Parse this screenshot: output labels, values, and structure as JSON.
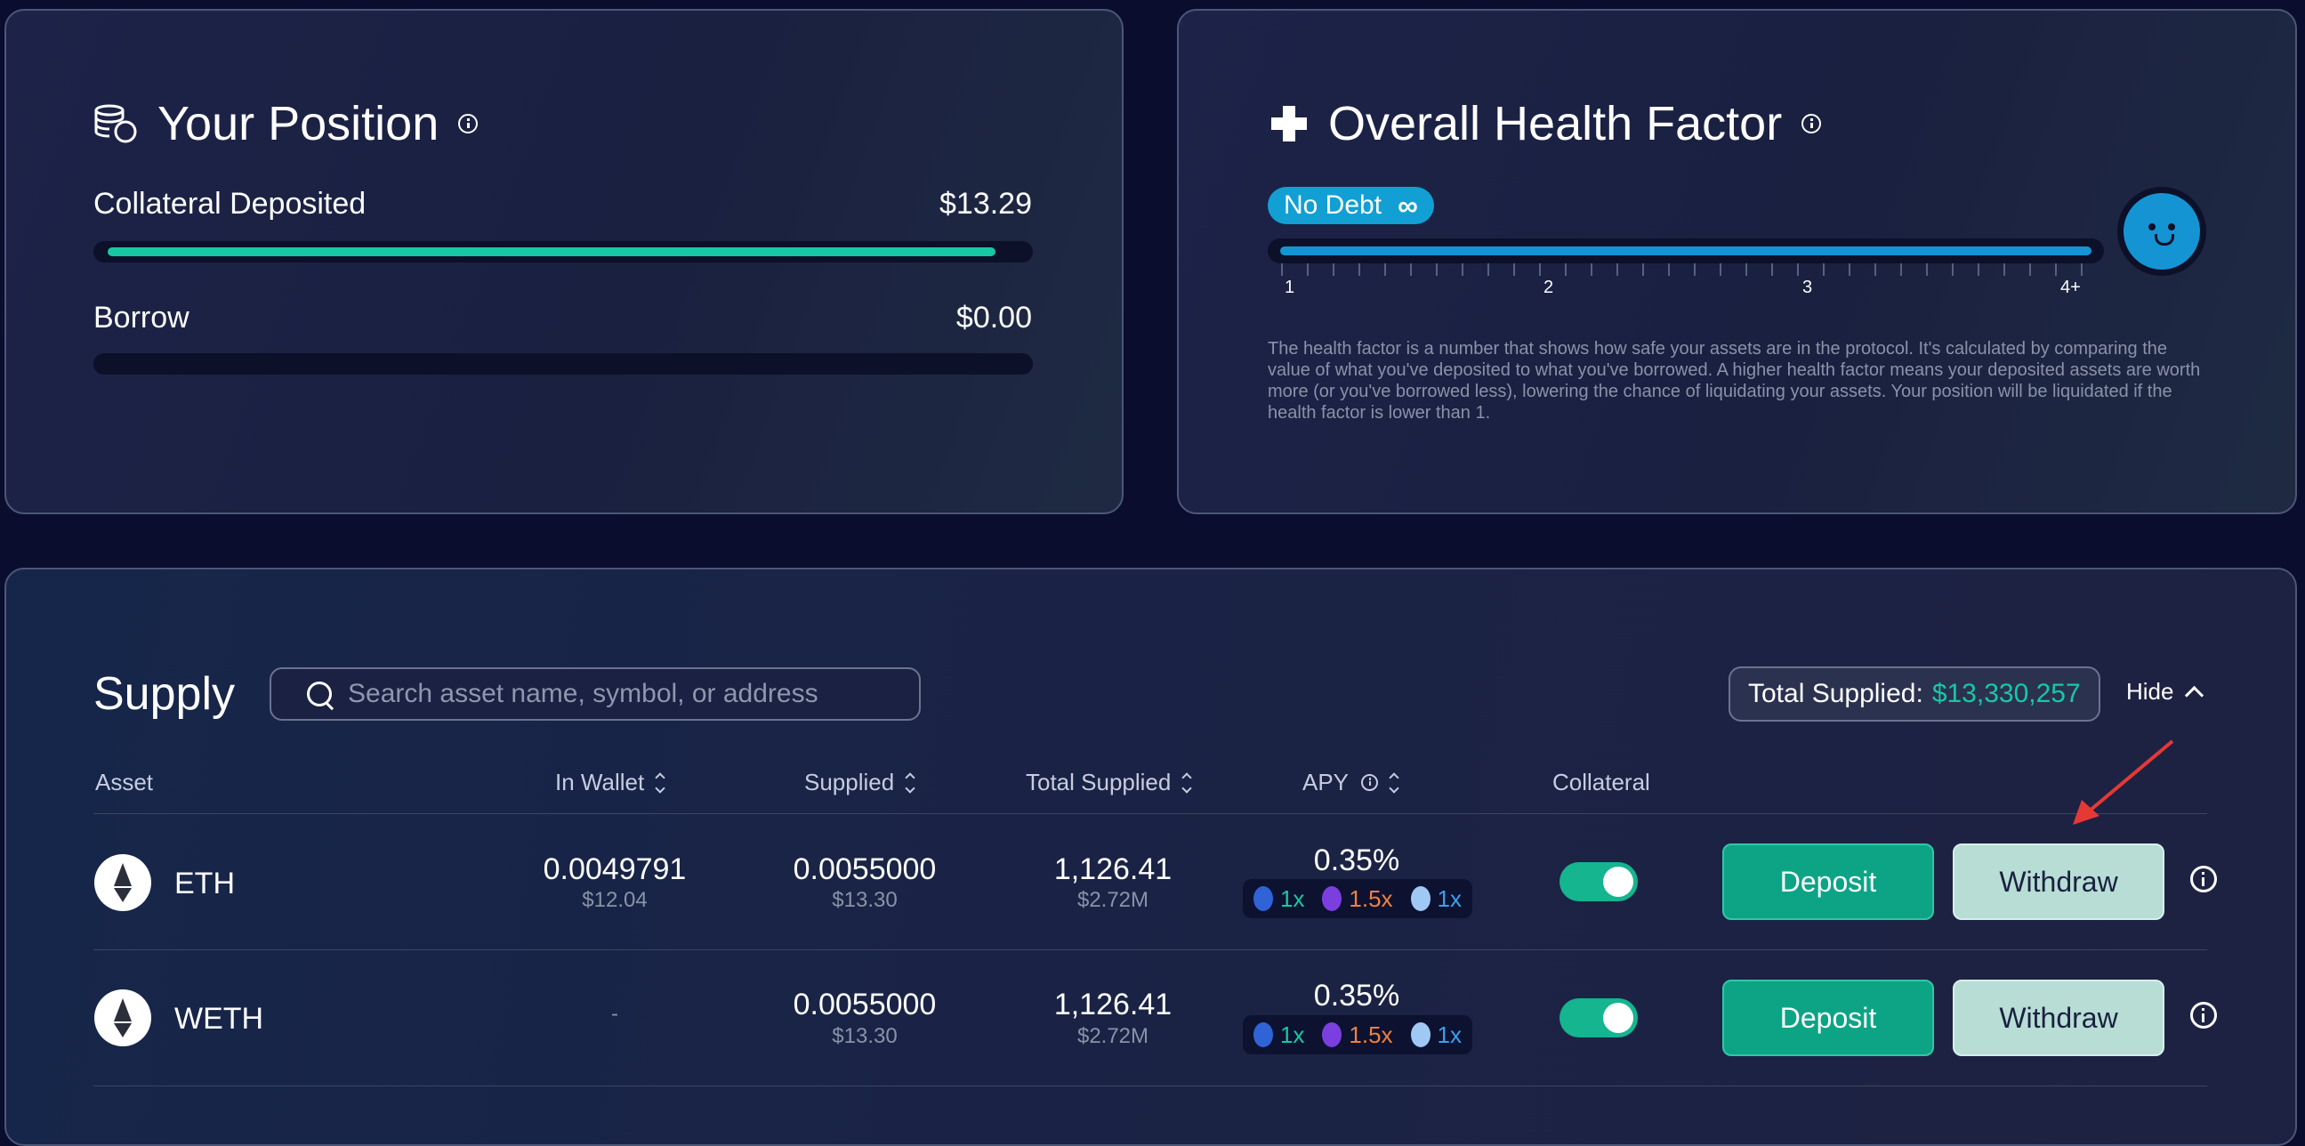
{
  "position": {
    "title": "Your Position",
    "collateral_label": "Collateral Deposited",
    "collateral_value": "$13.29",
    "collateral_fill": 0.975,
    "borrow_label": "Borrow",
    "borrow_value": "$0.00",
    "borrow_fill": 0
  },
  "health": {
    "title": "Overall Health Factor",
    "badge_label": "No Debt",
    "badge_symbol": "∞",
    "scale": [
      "1",
      "2",
      "3",
      "4+"
    ],
    "description": "The health factor is a number that shows how safe your assets are in the protocol. It's calculated by comparing the value of what you've deposited to what you've borrowed. A higher health factor means your deposited assets are worth more (or you've borrowed less), lowering the chance of liquidating your assets. Your position will be liquidated if the health factor is lower than 1."
  },
  "supply": {
    "title": "Supply",
    "search_placeholder": "Search asset name, symbol, or address",
    "total_label": "Total Supplied:",
    "total_value": "$13,330,257",
    "hide_label": "Hide",
    "columns": {
      "asset": "Asset",
      "in_wallet": "In Wallet",
      "supplied": "Supplied",
      "total_supplied": "Total Supplied",
      "apy": "APY",
      "collateral": "Collateral"
    },
    "rows": [
      {
        "asset": "ETH",
        "wallet": "0.0049791",
        "wallet_usd": "$12.04",
        "supplied": "0.0055000",
        "supplied_usd": "$13.30",
        "total": "1,126.41",
        "total_usd": "$2.72M",
        "apy": "0.35%",
        "boost1": "1x",
        "boost2": "1.5x",
        "boost3": "1x",
        "collateral_on": true,
        "deposit_label": "Deposit",
        "withdraw_label": "Withdraw"
      },
      {
        "asset": "WETH",
        "wallet": "-",
        "wallet_usd": "",
        "supplied": "0.0055000",
        "supplied_usd": "$13.30",
        "total": "1,126.41",
        "total_usd": "$2.72M",
        "apy": "0.35%",
        "boost1": "1x",
        "boost2": "1.5x",
        "boost3": "1x",
        "collateral_on": true,
        "deposit_label": "Deposit",
        "withdraw_label": "Withdraw"
      }
    ]
  },
  "colors": {
    "accent_green": "#16c9a4",
    "accent_blue": "#1594d3",
    "boost_orange": "#f0813e"
  }
}
